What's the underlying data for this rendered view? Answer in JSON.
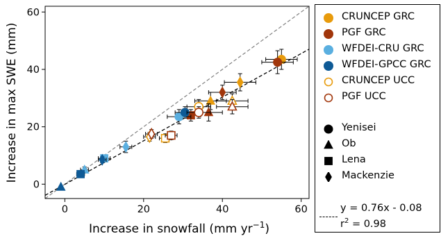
{
  "chart_data": {
    "type": "scatter",
    "xlabel": "Increase in snowfall (mm yr",
    "xlabel_sup": "−1",
    "xlabel_end": ")",
    "ylabel": "Increase in max SWE (mm)",
    "xlim": [
      -5,
      62
    ],
    "ylim": [
      -5,
      62
    ],
    "xticks": [
      0,
      20,
      40,
      60
    ],
    "yticks": [
      0,
      20,
      40,
      60
    ],
    "grid": false,
    "legend_position": "right",
    "reference_lines": [
      {
        "kind": "one-to-one",
        "slope": 1.0,
        "intercept": 0.0,
        "color": "#808080",
        "style": "dashed"
      },
      {
        "kind": "fit",
        "slope": 0.76,
        "intercept": -0.08,
        "color": "#000000",
        "style": "dashed"
      }
    ],
    "fit_label_eq": "y = 0.76x - 0.08",
    "fit_label_r": "r",
    "fit_label_r_sup": "2",
    "fit_label_r_val": " = 0.98",
    "series": [
      {
        "name": "CRUNCEP GRC",
        "color": "#e89b0c",
        "fill": "filled",
        "points": [
          {
            "x": 55,
            "y": 43.5,
            "basin": "Yenisei",
            "xerr": 4,
            "yerr": 3.5
          },
          {
            "x": 37,
            "y": 29,
            "basin": "Ob",
            "xerr": 4,
            "yerr": 3
          },
          {
            "x": 44.5,
            "y": 35.5,
            "basin": "Mackenzie",
            "xerr": 4,
            "yerr": 3
          }
        ]
      },
      {
        "name": "PGF GRC",
        "color": "#a1360b",
        "fill": "filled",
        "points": [
          {
            "x": 54,
            "y": 42.5,
            "basin": "Yenisei",
            "xerr": 4,
            "yerr": 4
          },
          {
            "x": 36.5,
            "y": 25,
            "basin": "Ob",
            "xerr": 3.5,
            "yerr": 3
          },
          {
            "x": 32,
            "y": 24,
            "basin": "Lena",
            "xerr": 2.5,
            "yerr": 2
          },
          {
            "x": 40,
            "y": 32,
            "basin": "Mackenzie",
            "xerr": 3.5,
            "yerr": 2.5
          }
        ]
      },
      {
        "name": "WFDEI-CRU GRC",
        "color": "#5aafe0",
        "fill": "filled",
        "points": [
          {
            "x": 29,
            "y": 23.5,
            "basin": "Yenisei",
            "xerr": 3,
            "yerr": 2.5
          },
          {
            "x": 5,
            "y": 5,
            "basin": "Ob",
            "xerr": 1,
            "yerr": 1
          },
          {
            "x": 10,
            "y": 9,
            "basin": "Lena",
            "xerr": 1.5,
            "yerr": 1
          },
          {
            "x": 15.5,
            "y": 13,
            "basin": "Mackenzie",
            "xerr": 1.5,
            "yerr": 2
          }
        ]
      },
      {
        "name": "WFDEI-GPCC GRC",
        "color": "#0e5a96",
        "fill": "filled",
        "points": [
          {
            "x": 30.5,
            "y": 25,
            "basin": "Yenisei",
            "xerr": 2.5,
            "yerr": 2
          },
          {
            "x": -1,
            "y": -1,
            "basin": "Ob",
            "xerr": 0,
            "yerr": 0
          },
          {
            "x": 4,
            "y": 3.5,
            "basin": "Lena",
            "xerr": 1,
            "yerr": 1
          },
          {
            "x": 9.5,
            "y": 8.5,
            "basin": "Mackenzie",
            "xerr": 1,
            "yerr": 1
          }
        ]
      },
      {
        "name": "CRUNCEP UCC",
        "color": "#e89b0c",
        "fill": "open",
        "points": [
          {
            "x": 34,
            "y": 27,
            "basin": "Yenisei",
            "xerr": 3,
            "yerr": 2.5
          },
          {
            "x": 42.5,
            "y": 29,
            "basin": "Ob",
            "xerr": 4,
            "yerr": 2.5
          },
          {
            "x": 25.5,
            "y": 16,
            "basin": "Lena",
            "xerr": 1.5,
            "yerr": 1.5
          },
          {
            "x": 21.5,
            "y": 16.5,
            "basin": "Mackenzie",
            "xerr": 1.5,
            "yerr": 1.5
          }
        ]
      },
      {
        "name": "PGF UCC",
        "color": "#a1360b",
        "fill": "open",
        "points": [
          {
            "x": 34,
            "y": 25,
            "basin": "Yenisei",
            "xerr": 3,
            "yerr": 2
          },
          {
            "x": 42.5,
            "y": 27,
            "basin": "Ob",
            "xerr": 4,
            "yerr": 2.5
          },
          {
            "x": 27,
            "y": 17,
            "basin": "Lena",
            "xerr": 1.5,
            "yerr": 1.5
          },
          {
            "x": 22,
            "y": 17.5,
            "basin": "Mackenzie",
            "xerr": 1.5,
            "yerr": 1.5
          }
        ]
      }
    ],
    "basin_legend": [
      {
        "name": "Yenisei",
        "marker": "circle"
      },
      {
        "name": "Ob",
        "marker": "triangle"
      },
      {
        "name": "Lena",
        "marker": "square"
      },
      {
        "name": "Mackenzie",
        "marker": "diamond"
      }
    ]
  }
}
